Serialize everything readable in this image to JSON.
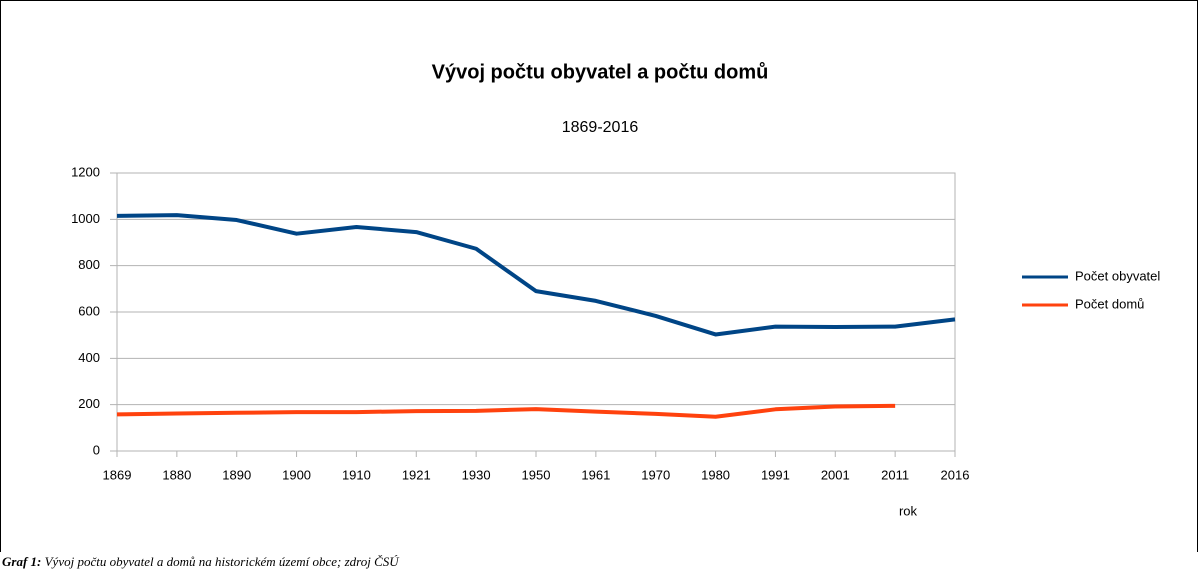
{
  "chart_data": {
    "type": "line",
    "title": "Vývoj počtu obyvatel a počtu domů",
    "subtitle": "1869-2016",
    "x_label": "rok",
    "categories": [
      "1869",
      "1880",
      "1890",
      "1900",
      "1910",
      "1921",
      "1930",
      "1950",
      "1961",
      "1970",
      "1980",
      "1991",
      "2001",
      "2011",
      "2016"
    ],
    "series": [
      {
        "name": "Počet obyvatel",
        "color": "#004586",
        "values": [
          1015,
          1018,
          997,
          938,
          967,
          945,
          873,
          690,
          648,
          583,
          503,
          537,
          535,
          537,
          568
        ]
      },
      {
        "name": "Počet domů",
        "color": "#ff420e",
        "values": [
          158,
          162,
          165,
          168,
          168,
          172,
          173,
          181,
          170,
          160,
          148,
          180,
          192,
          195,
          null
        ]
      }
    ],
    "ylim": [
      0,
      1200
    ],
    "yticks": [
      0,
      200,
      400,
      600,
      800,
      1000,
      1200
    ],
    "grid": true,
    "legend": "right"
  },
  "caption": {
    "label": "Graf 1:",
    "text": " Vývoj počtu obyvatel a domů na historickém území obce; zdroj ČSÚ"
  }
}
